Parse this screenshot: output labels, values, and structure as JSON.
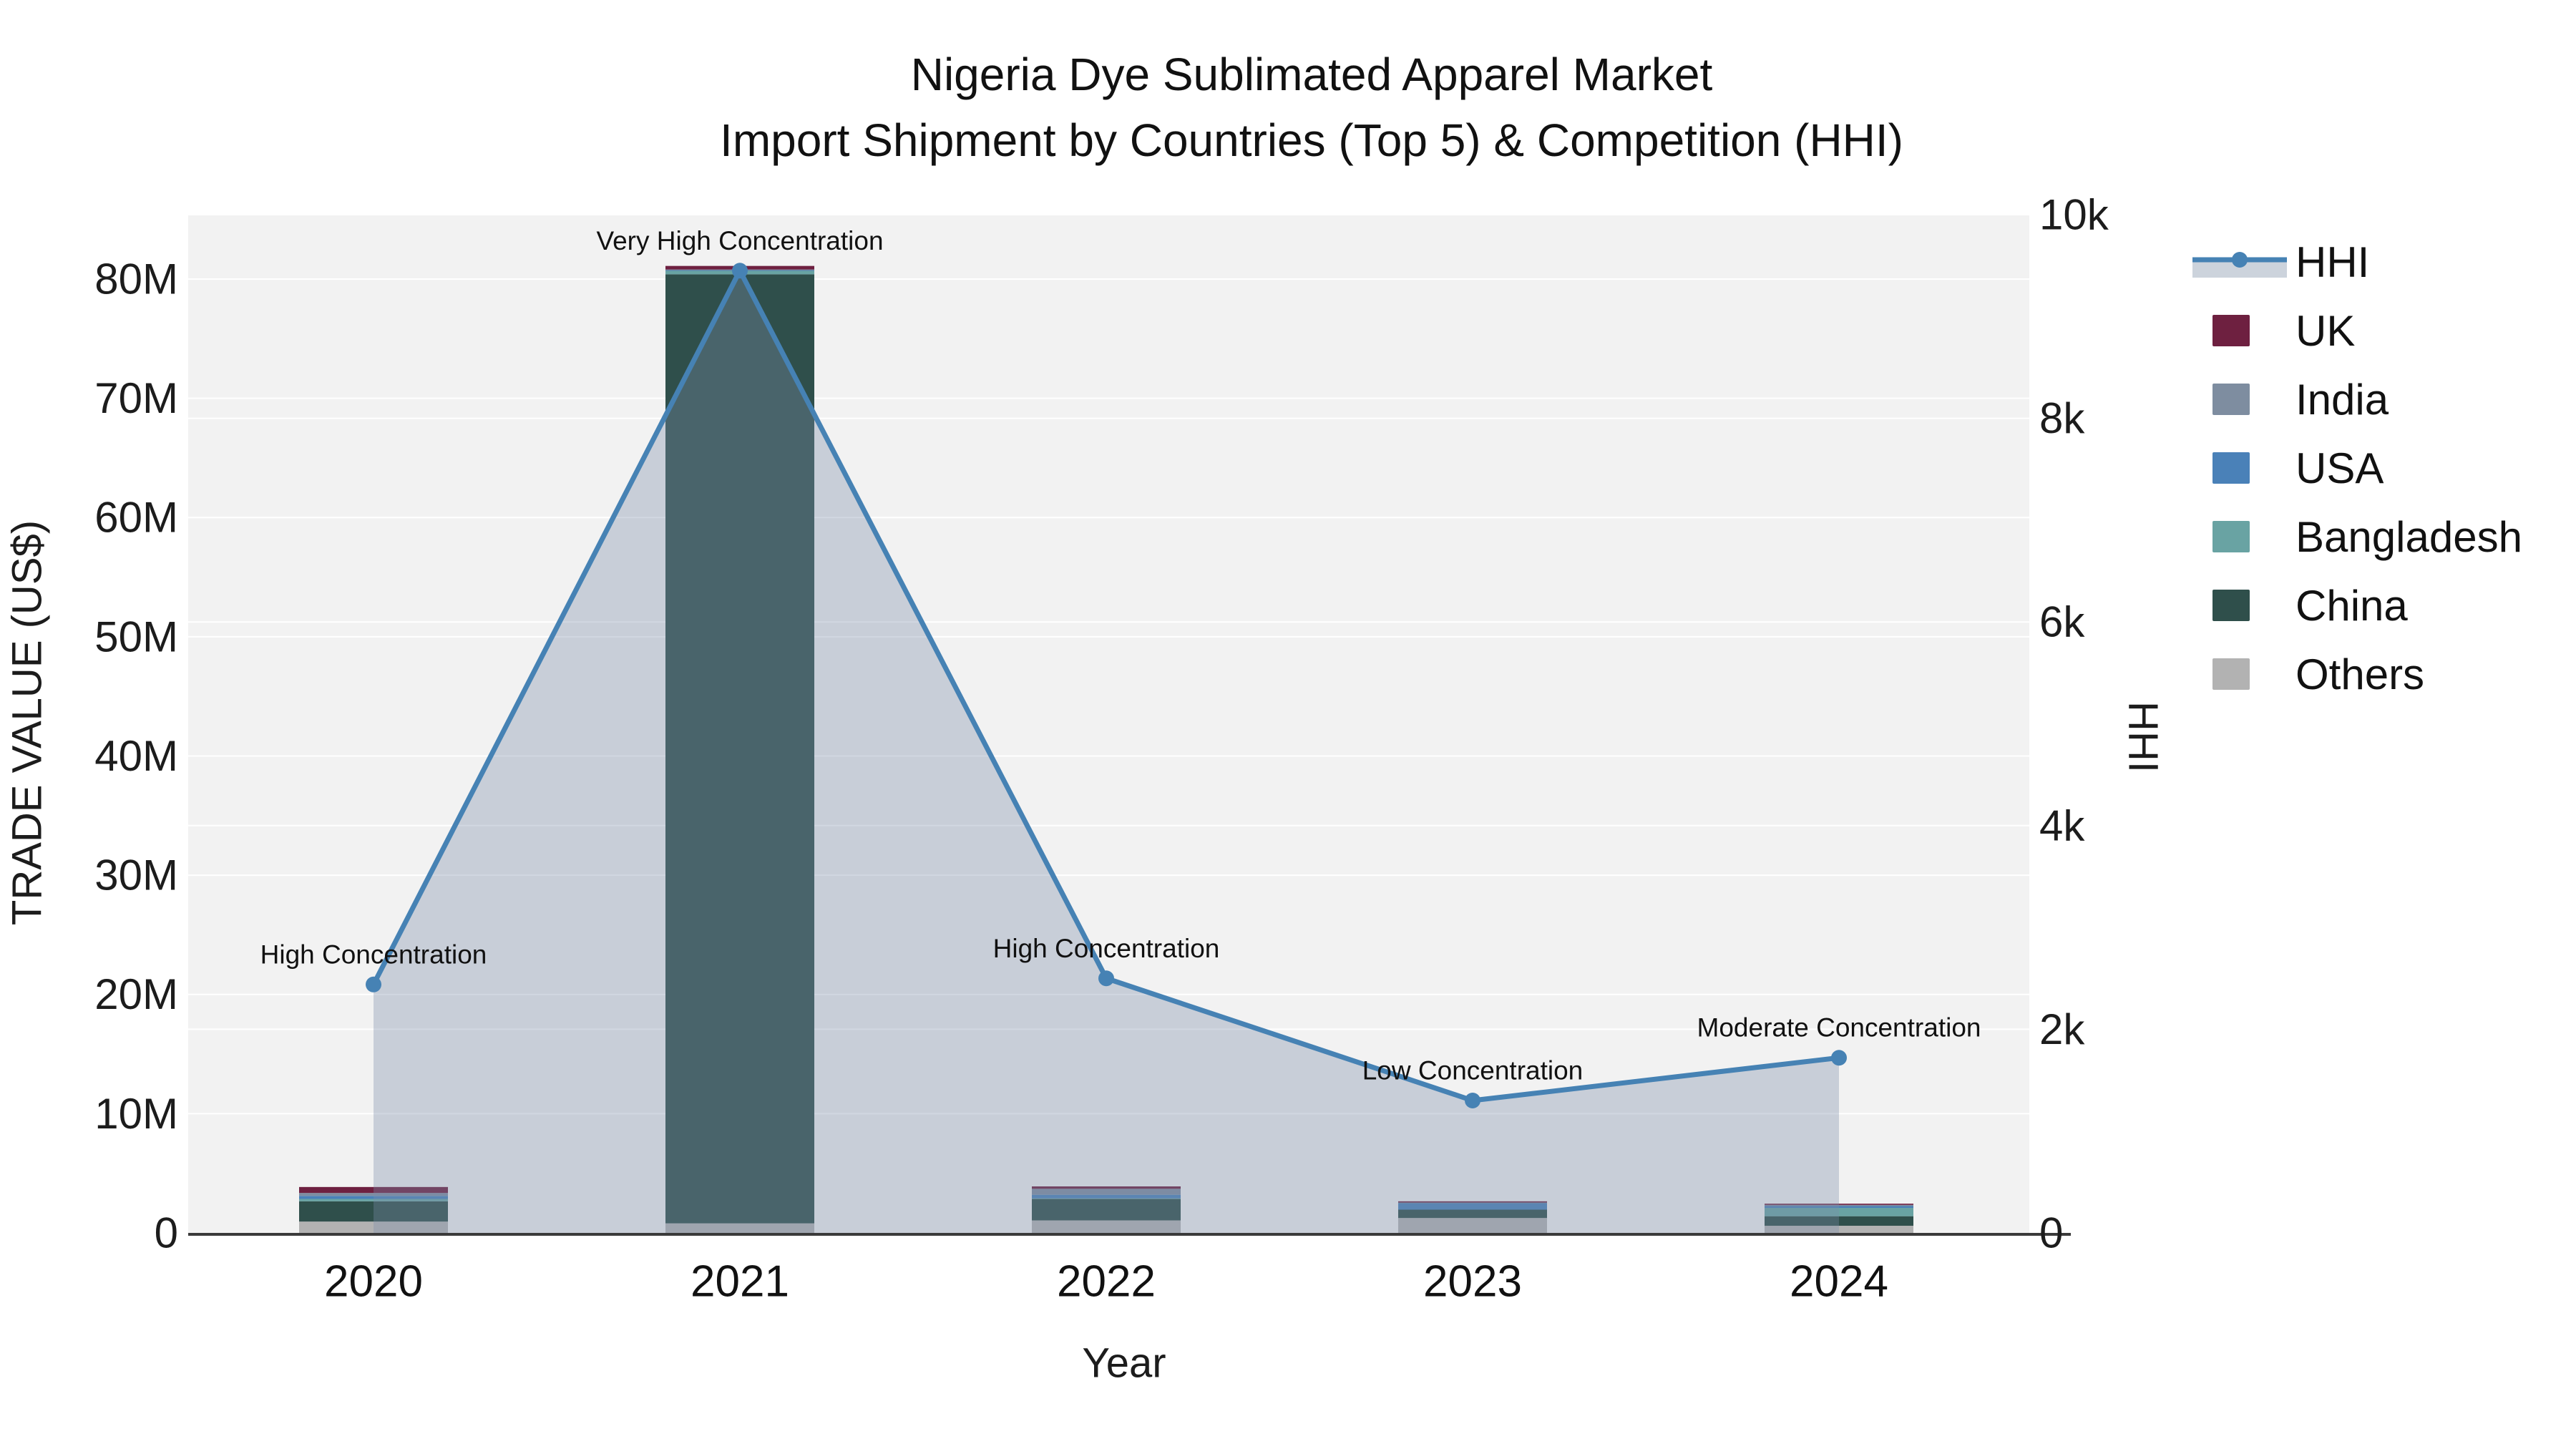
{
  "title": {
    "line1": "Nigeria Dye Sublimated Apparel Market",
    "line2": "Import Shipment by Countries (Top 5) & Competition (HHI)"
  },
  "axes": {
    "y_left": {
      "title": "TRADE VALUE (US$)",
      "tick_labels": [
        "0",
        "10M",
        "20M",
        "30M",
        "40M",
        "50M",
        "60M",
        "70M",
        "80M"
      ],
      "tick_values": [
        0,
        10,
        20,
        30,
        40,
        50,
        60,
        70,
        80
      ],
      "units": "M US$"
    },
    "y_right": {
      "title": "HHI",
      "tick_labels": [
        "0",
        "2k",
        "4k",
        "6k",
        "8k",
        "10k"
      ],
      "tick_values": [
        0,
        2000,
        4000,
        6000,
        8000,
        10000
      ]
    },
    "x": {
      "title": "Year",
      "tick_labels": [
        "2020",
        "2021",
        "2022",
        "2023",
        "2024"
      ]
    }
  },
  "legend": {
    "items": [
      {
        "label": "HHI",
        "type": "line",
        "color": "#4682b4"
      },
      {
        "label": "UK",
        "type": "swatch",
        "color": "#6e2040"
      },
      {
        "label": "India",
        "type": "swatch",
        "color": "#7e8da0"
      },
      {
        "label": "USA",
        "type": "swatch",
        "color": "#4a81b8"
      },
      {
        "label": "Bangladesh",
        "type": "swatch",
        "color": "#69a3a3"
      },
      {
        "label": "China",
        "type": "swatch",
        "color": "#2f4f4b"
      },
      {
        "label": "Others",
        "type": "swatch",
        "color": "#b2b2b2"
      }
    ]
  },
  "chart_data": {
    "type": "combo-stacked-bar-line",
    "categories": [
      "2020",
      "2021",
      "2022",
      "2023",
      "2024"
    ],
    "bar_series": [
      {
        "name": "UK",
        "color": "#6e2040",
        "values": [
          0.5,
          0.3,
          0.2,
          0.1,
          0.1
        ]
      },
      {
        "name": "India",
        "color": "#7e8da0",
        "values": [
          0.25,
          0.05,
          0.5,
          0.05,
          0.1
        ]
      },
      {
        "name": "USA",
        "color": "#4a81b8",
        "values": [
          0.25,
          0.05,
          0.3,
          0.55,
          0.15
        ]
      },
      {
        "name": "Bangladesh",
        "color": "#69a3a3",
        "values": [
          0.2,
          0.3,
          0.05,
          0.0,
          0.7
        ]
      },
      {
        "name": "China",
        "color": "#2f4f4b",
        "values": [
          1.7,
          79.6,
          1.8,
          0.7,
          0.8
        ]
      },
      {
        "name": "Others",
        "color": "#b2b2b2",
        "values": [
          0.95,
          0.8,
          1.05,
          1.25,
          0.6
        ]
      }
    ],
    "bar_totals": [
      3.85,
      81.1,
      3.9,
      2.65,
      2.45
    ],
    "line_series": {
      "name": "HHI",
      "color": "#4682b4",
      "fill_color": "rgba(124,140,170,0.35)",
      "values": [
        2440,
        9450,
        2500,
        1300,
        1720
      ]
    },
    "annotations": [
      "High Concentration",
      "Very High Concentration",
      "High Concentration",
      "Low Concentration",
      "Moderate Concentration"
    ],
    "title": "Nigeria Dye Sublimated Apparel Market — Import Shipment by Countries (Top 5) & Competition (HHI)",
    "xlabel": "Year",
    "ylabel_left": "TRADE VALUE (US$)",
    "ylabel_right": "HHI",
    "y_left_range_M": [
      0,
      85.4
    ],
    "y_right_range": [
      0,
      10000
    ],
    "plot_bg": "#f2f2f2",
    "grid_color": "#ffffff"
  }
}
